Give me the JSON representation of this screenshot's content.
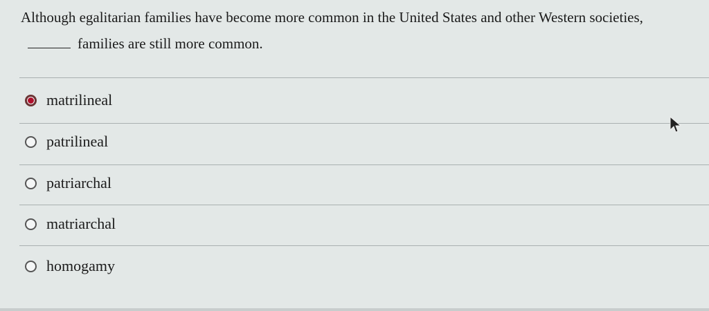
{
  "question": {
    "text_before": "Although egalitarian families have become more common in the United States and other Western societies,",
    "text_after": "families are still more common."
  },
  "options": [
    {
      "label": "matrilineal",
      "selected": true
    },
    {
      "label": "patrilineal",
      "selected": false
    },
    {
      "label": "patriarchal",
      "selected": false
    },
    {
      "label": "matriarchal",
      "selected": false
    },
    {
      "label": "homogamy",
      "selected": false
    }
  ],
  "colors": {
    "selected_radio": "#b0102c",
    "background": "#e3e8e7"
  }
}
